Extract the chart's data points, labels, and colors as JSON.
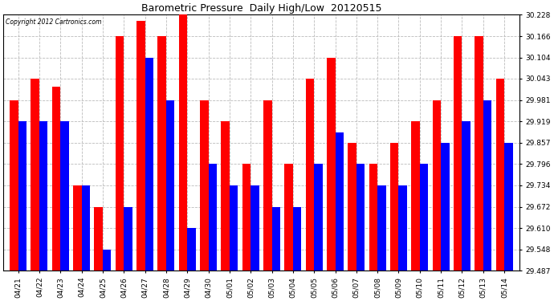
{
  "title": "Barometric Pressure  Daily High/Low  20120515",
  "copyright": "Copyright 2012 Cartronics.com",
  "dates": [
    "04/21",
    "04/22",
    "04/23",
    "04/24",
    "04/25",
    "04/26",
    "04/27",
    "04/28",
    "04/29",
    "04/30",
    "05/01",
    "05/02",
    "05/03",
    "05/04",
    "05/05",
    "05/06",
    "05/07",
    "05/08",
    "05/09",
    "05/10",
    "05/11",
    "05/12",
    "05/13",
    "05/14"
  ],
  "highs": [
    29.981,
    30.043,
    30.02,
    29.734,
    29.672,
    30.166,
    30.21,
    30.166,
    30.228,
    29.981,
    29.919,
    29.796,
    29.981,
    29.796,
    30.043,
    30.104,
    29.857,
    29.796,
    29.857,
    29.919,
    29.981,
    30.166,
    30.166,
    30.043
  ],
  "lows": [
    29.919,
    29.919,
    29.919,
    29.734,
    29.548,
    29.672,
    30.104,
    29.981,
    29.61,
    29.796,
    29.734,
    29.734,
    29.672,
    29.672,
    29.796,
    29.887,
    29.796,
    29.734,
    29.734,
    29.796,
    29.857,
    29.919,
    29.981,
    29.857
  ],
  "high_color": "#ff0000",
  "low_color": "#0000ff",
  "bg_color": "#ffffff",
  "grid_color": "#bbbbbb",
  "yticks": [
    29.487,
    29.548,
    29.61,
    29.672,
    29.734,
    29.796,
    29.857,
    29.919,
    29.981,
    30.043,
    30.104,
    30.166,
    30.228
  ],
  "ymin": 29.487,
  "ymax": 30.228,
  "bar_width": 0.4
}
